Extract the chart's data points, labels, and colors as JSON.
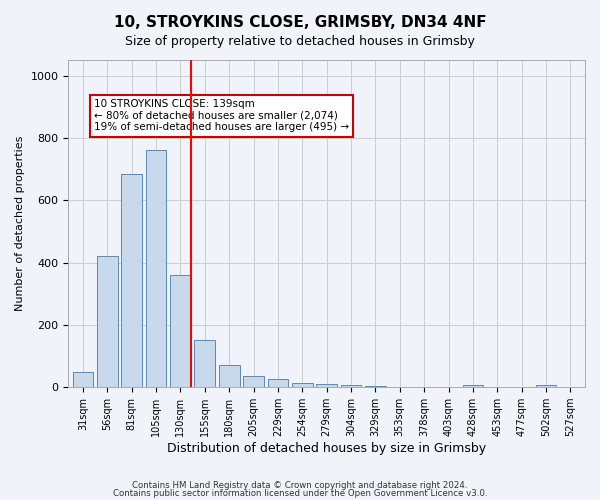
{
  "title1": "10, STROYKINS CLOSE, GRIMSBY, DN34 4NF",
  "title2": "Size of property relative to detached houses in Grimsby",
  "xlabel": "Distribution of detached houses by size in Grimsby",
  "ylabel": "Number of detached properties",
  "categories": [
    "31sqm",
    "56sqm",
    "81sqm",
    "105sqm",
    "130sqm",
    "155sqm",
    "180sqm",
    "205sqm",
    "229sqm",
    "254sqm",
    "279sqm",
    "304sqm",
    "329sqm",
    "353sqm",
    "378sqm",
    "403sqm",
    "428sqm",
    "453sqm",
    "477sqm",
    "502sqm",
    "527sqm"
  ],
  "values": [
    50,
    420,
    685,
    760,
    360,
    150,
    70,
    35,
    25,
    15,
    10,
    8,
    5,
    2,
    0,
    0,
    7,
    0,
    0,
    7,
    0
  ],
  "bar_color": "#c9d9ec",
  "bar_edge_color": "#5a8ab5",
  "highlight_bar_index": 4,
  "red_line_x": 4,
  "annotation_text": "10 STROYKINS CLOSE: 139sqm\n← 80% of detached houses are smaller (2,074)\n19% of semi-detached houses are larger (495) →",
  "annotation_box_color": "#ffffff",
  "annotation_box_edge": "#cc0000",
  "ylim": [
    0,
    1050
  ],
  "grid_color": "#cccccc",
  "background_color": "#f0f4fa",
  "footer1": "Contains HM Land Registry data © Crown copyright and database right 2024.",
  "footer2": "Contains public sector information licensed under the Open Government Licence v3.0."
}
